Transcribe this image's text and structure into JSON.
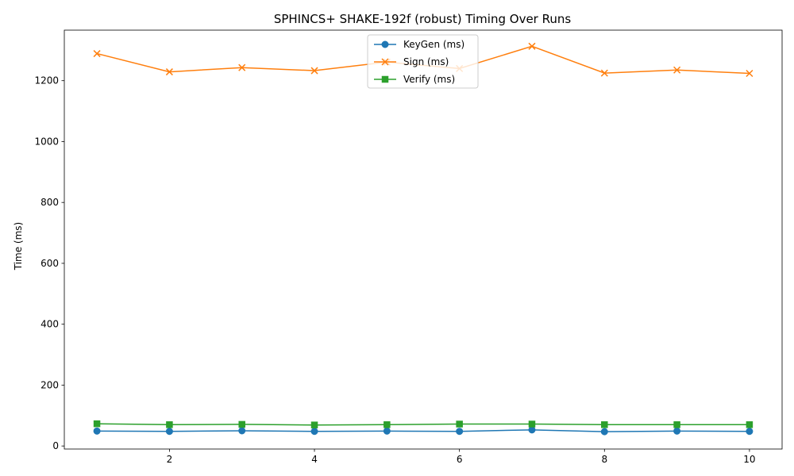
{
  "chart_data": {
    "type": "line",
    "title": "SPHINCS+ SHAKE-192f (robust) Timing Over Runs",
    "xlabel": "",
    "ylabel": "Time (ms)",
    "xlim": [
      0.55,
      10.45
    ],
    "ylim": [
      -10,
      1366
    ],
    "x_ticks": [
      2,
      4,
      6,
      8,
      10
    ],
    "y_ticks": [
      0,
      200,
      400,
      600,
      800,
      1000,
      1200
    ],
    "grid": false,
    "legend_position": "top-center",
    "x": [
      1,
      2,
      3,
      4,
      5,
      6,
      7,
      8,
      9,
      10
    ],
    "series": [
      {
        "name": "KeyGen (ms)",
        "marker": "circle",
        "color": "#1f77b4",
        "values": [
          49,
          48,
          50,
          48,
          49,
          48,
          53,
          47,
          49,
          48
        ]
      },
      {
        "name": "Sign (ms)",
        "marker": "x",
        "color": "#ff7f0e",
        "values": [
          1289,
          1229,
          1243,
          1233,
          1261,
          1240,
          1313,
          1225,
          1235,
          1224
        ]
      },
      {
        "name": "Verify (ms)",
        "marker": "square",
        "color": "#2ca02c",
        "values": [
          73,
          70,
          71,
          69,
          70,
          72,
          72,
          70,
          70,
          70
        ]
      }
    ]
  }
}
